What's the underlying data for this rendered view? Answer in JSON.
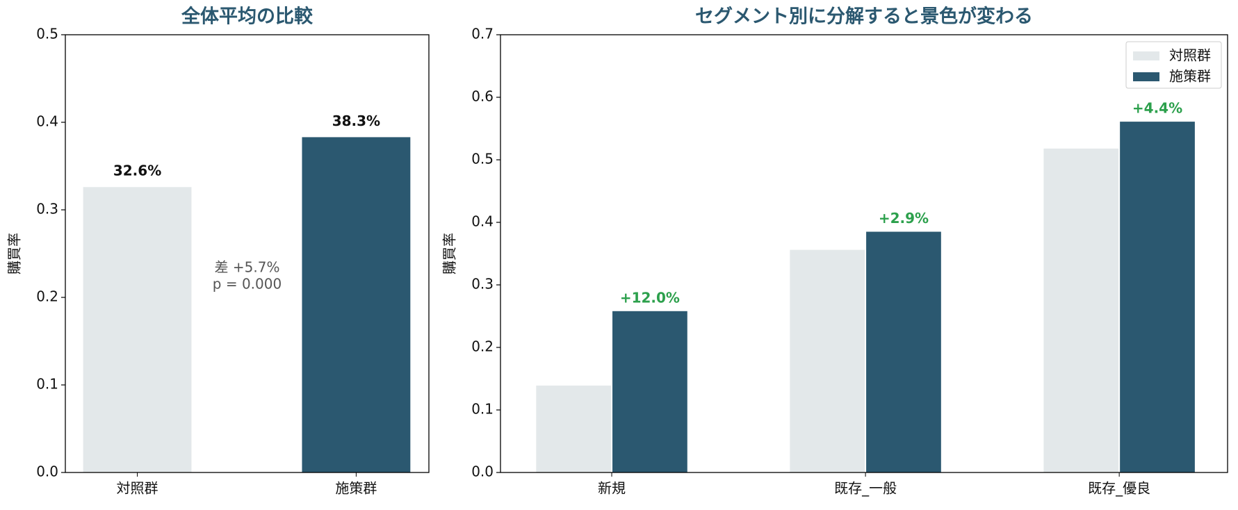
{
  "chart_data": [
    {
      "type": "bar",
      "title": "全体平均の比較",
      "ylabel": "購買率",
      "categories": [
        "対照群",
        "施策群"
      ],
      "values": [
        0.326,
        0.383
      ],
      "value_labels": [
        "32.6%",
        "38.3%"
      ],
      "colors": [
        "#e3e8ea",
        "#2b5870"
      ],
      "annotations": [
        "差 +5.7%",
        "p = 0.000"
      ],
      "ylim": [
        0,
        0.5
      ],
      "yticks": [
        {
          "value": 0,
          "label": "0.0"
        },
        0.1,
        0.2,
        0.3,
        0.4,
        0.5
      ]
    },
    {
      "type": "grouped-bar",
      "title": "セグメント別に分解すると景色が変わる",
      "ylabel": "購買率",
      "categories": [
        "新規",
        "既存_一般",
        "既存_優良"
      ],
      "series": [
        {
          "name": "対照群",
          "color": "#e3e8ea",
          "values": [
            0.139,
            0.356,
            0.518
          ]
        },
        {
          "name": "施策群",
          "color": "#2b5870",
          "values": [
            0.258,
            0.385,
            0.561
          ]
        }
      ],
      "diff_labels": [
        "+12.0%",
        "+2.9%",
        "+4.4%"
      ],
      "diff_color": "#2ca04c",
      "legend": "upper right",
      "ylim": [
        0,
        0.7
      ],
      "yticks": [
        {
          "value": 0,
          "label": "0.0"
        },
        0.1,
        0.2,
        0.3,
        0.4,
        0.5,
        0.6,
        0.7
      ]
    }
  ]
}
